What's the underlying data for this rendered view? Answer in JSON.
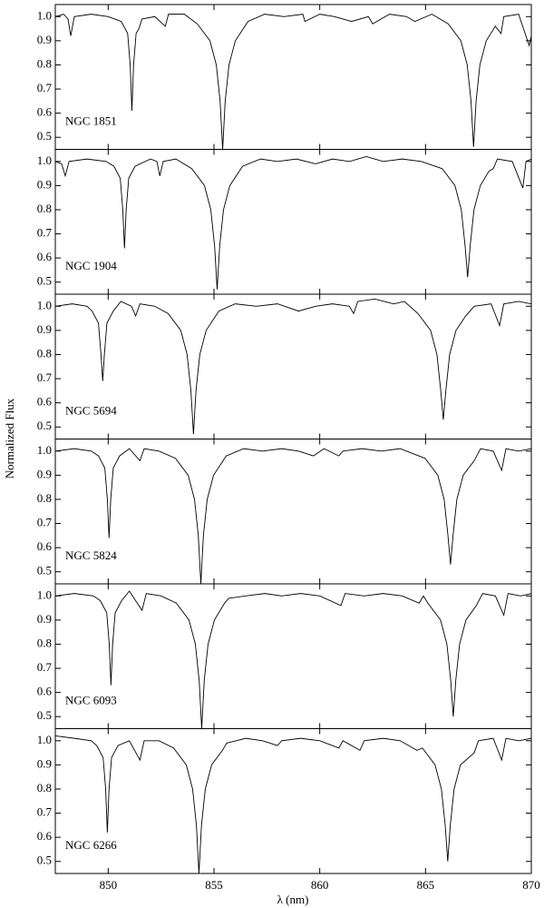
{
  "ylabel": "Normalized Flux",
  "xlabel": "λ (nm)",
  "chart_data": [
    {
      "type": "line",
      "annotation": "NGC 1851",
      "color": "#000000",
      "xlim": [
        847.5,
        870
      ],
      "xticks": [
        850,
        855,
        860,
        865,
        870
      ],
      "ylim": [
        0.45,
        1.05
      ],
      "yticks": [
        0.5,
        0.6,
        0.7,
        0.8,
        0.9,
        {
          "value": 1,
          "label": "1.0"
        }
      ],
      "x": [
        847.5,
        847.9,
        848.1,
        848.23,
        848.4,
        849.2,
        850.0,
        850.62,
        850.92,
        851.04,
        851.12,
        851.2,
        851.32,
        851.45,
        851.6,
        852.2,
        852.7,
        852.85,
        853.6,
        854.21,
        854.81,
        855.11,
        855.29,
        855.41,
        855.53,
        855.71,
        856.01,
        856.61,
        857.4,
        858.3,
        859.2,
        859.3,
        860.0,
        860.7,
        861.5,
        862.3,
        862.5,
        863.3,
        864.1,
        864.5,
        865.3,
        866.07,
        866.67,
        866.97,
        867.15,
        867.27,
        867.39,
        867.57,
        867.87,
        868.3,
        868.57,
        868.7,
        869.4,
        869.9,
        870.0
      ],
      "values": [
        1.0,
        1.01,
        0.99,
        0.92,
        1.0,
        1.01,
        1.0,
        0.98,
        0.93,
        0.8,
        0.61,
        0.8,
        0.93,
        0.95,
        0.99,
        1.0,
        0.96,
        1.01,
        1.01,
        0.97,
        0.9,
        0.8,
        0.65,
        0.45,
        0.65,
        0.8,
        0.9,
        0.98,
        1.01,
        1.0,
        1.01,
        0.98,
        1.01,
        1.0,
        0.98,
        1.0,
        0.97,
        1.01,
        1.0,
        0.98,
        1.01,
        0.97,
        0.9,
        0.8,
        0.65,
        0.46,
        0.65,
        0.8,
        0.9,
        0.96,
        0.93,
        1.0,
        1.01,
        0.88,
        0.92
      ]
    },
    {
      "type": "line",
      "annotation": "NGC 1904",
      "color": "#000000",
      "xlim": [
        847.5,
        870
      ],
      "xticks": [
        850,
        855,
        860,
        865,
        870
      ],
      "ylim": [
        0.45,
        1.05
      ],
      "yticks": [
        0.5,
        0.6,
        0.7,
        0.8,
        0.9,
        {
          "value": 1,
          "label": "1.0"
        }
      ],
      "x": [
        847.5,
        847.8,
        847.97,
        848.15,
        849.0,
        849.9,
        850.27,
        850.57,
        850.69,
        850.77,
        850.85,
        850.97,
        851.27,
        852.0,
        852.3,
        852.44,
        852.6,
        853.2,
        853.95,
        854.55,
        854.85,
        855.03,
        855.15,
        855.27,
        855.45,
        855.75,
        856.35,
        857.2,
        858.0,
        858.9,
        859.8,
        860.6,
        861.4,
        862.2,
        863.0,
        863.9,
        864.8,
        865.79,
        866.39,
        866.69,
        866.87,
        866.99,
        867.11,
        867.29,
        867.59,
        868.0,
        868.2,
        868.4,
        869.1,
        869.6,
        869.75,
        870.0
      ],
      "values": [
        1.0,
        0.99,
        0.94,
        1.0,
        1.01,
        1.0,
        0.98,
        0.93,
        0.8,
        0.64,
        0.8,
        0.93,
        0.98,
        1.01,
        1.0,
        0.94,
        1.0,
        1.01,
        0.97,
        0.9,
        0.8,
        0.65,
        0.47,
        0.65,
        0.8,
        0.9,
        0.98,
        1.01,
        1.0,
        1.01,
        0.99,
        1.01,
        1.0,
        1.02,
        1.0,
        1.01,
        1.0,
        0.97,
        0.9,
        0.8,
        0.65,
        0.52,
        0.65,
        0.8,
        0.9,
        0.96,
        0.97,
        1.01,
        1.0,
        0.89,
        1.0,
        1.01
      ]
    },
    {
      "type": "line",
      "annotation": "NGC 5694",
      "color": "#000000",
      "xlim": [
        847.5,
        870
      ],
      "xticks": [
        850,
        855,
        860,
        865,
        870
      ],
      "ylim": [
        0.45,
        1.05
      ],
      "yticks": [
        0.5,
        0.6,
        0.7,
        0.8,
        0.9,
        {
          "value": 1,
          "label": "1.0"
        }
      ],
      "x": [
        847.5,
        848.3,
        849.0,
        849.24,
        849.54,
        849.66,
        849.74,
        849.82,
        849.94,
        850.24,
        850.6,
        851.1,
        851.3,
        851.5,
        852.2,
        852.83,
        853.43,
        853.73,
        853.91,
        854.03,
        854.15,
        854.33,
        854.63,
        855.23,
        856.0,
        857.0,
        858.0,
        859.0,
        859.8,
        860.6,
        861.4,
        861.6,
        861.8,
        862.6,
        863.5,
        864.0,
        864.64,
        865.24,
        865.54,
        865.72,
        865.84,
        865.96,
        866.14,
        866.44,
        866.9,
        867.3,
        868.1,
        868.5,
        868.7,
        869.4,
        870.0
      ],
      "values": [
        1.0,
        1.01,
        1.0,
        0.98,
        0.93,
        0.8,
        0.69,
        0.8,
        0.93,
        0.98,
        1.02,
        1.0,
        0.96,
        1.01,
        1.0,
        0.97,
        0.9,
        0.8,
        0.65,
        0.47,
        0.65,
        0.8,
        0.9,
        0.98,
        1.01,
        1.0,
        1.01,
        0.98,
        1.0,
        1.01,
        1.0,
        0.97,
        1.02,
        1.03,
        1.01,
        1.02,
        0.97,
        0.9,
        0.8,
        0.65,
        0.53,
        0.65,
        0.8,
        0.9,
        0.96,
        1.0,
        1.01,
        0.92,
        1.01,
        1.02,
        1.01
      ]
    },
    {
      "type": "line",
      "annotation": "NGC 5824",
      "color": "#000000",
      "xlim": [
        847.5,
        870
      ],
      "xticks": [
        850,
        855,
        860,
        865,
        870
      ],
      "ylim": [
        0.45,
        1.05
      ],
      "yticks": [
        0.5,
        0.6,
        0.7,
        0.8,
        0.9,
        {
          "value": 1,
          "label": "1.0"
        }
      ],
      "x": [
        847.5,
        848.4,
        849.2,
        849.54,
        849.84,
        849.96,
        850.04,
        850.12,
        850.24,
        850.54,
        851.0,
        851.5,
        851.7,
        852.4,
        853.18,
        853.78,
        854.08,
        854.26,
        854.38,
        854.5,
        854.68,
        854.98,
        855.58,
        856.4,
        857.3,
        858.2,
        859.0,
        859.7,
        860.2,
        860.9,
        861.1,
        862.0,
        862.9,
        863.8,
        864.98,
        865.58,
        865.88,
        866.06,
        866.18,
        866.3,
        866.48,
        866.78,
        867.3,
        867.6,
        868.2,
        868.6,
        868.8,
        869.4,
        870.0
      ],
      "values": [
        1.0,
        1.01,
        1.0,
        0.98,
        0.93,
        0.8,
        0.64,
        0.8,
        0.93,
        0.98,
        1.01,
        0.96,
        1.01,
        1.0,
        0.97,
        0.9,
        0.8,
        0.65,
        0.45,
        0.65,
        0.8,
        0.9,
        0.98,
        1.01,
        1.0,
        1.01,
        1.0,
        0.98,
        1.01,
        0.98,
        1.0,
        1.01,
        1.0,
        1.01,
        0.97,
        0.9,
        0.8,
        0.65,
        0.53,
        0.65,
        0.8,
        0.9,
        0.96,
        1.01,
        1.0,
        0.92,
        1.01,
        1.0,
        1.01
      ]
    },
    {
      "type": "line",
      "annotation": "NGC 6093",
      "color": "#000000",
      "xlim": [
        847.5,
        870
      ],
      "xticks": [
        850,
        855,
        860,
        865,
        870
      ],
      "ylim": [
        0.45,
        1.05
      ],
      "yticks": [
        0.5,
        0.6,
        0.7,
        0.8,
        0.9,
        {
          "value": 1,
          "label": "1.0"
        }
      ],
      "x": [
        847.5,
        848.4,
        849.3,
        849.63,
        849.93,
        850.05,
        850.13,
        850.21,
        850.33,
        850.63,
        851.0,
        851.6,
        851.8,
        852.5,
        853.22,
        853.82,
        854.12,
        854.3,
        854.42,
        854.54,
        854.72,
        855.02,
        855.5,
        855.7,
        856.5,
        857.4,
        858.2,
        859.1,
        860.0,
        861.0,
        861.2,
        862.1,
        863.0,
        863.9,
        864.7,
        864.9,
        865.11,
        865.71,
        866.01,
        866.19,
        866.31,
        866.43,
        866.61,
        866.91,
        867.4,
        867.7,
        868.3,
        868.7,
        868.9,
        869.5,
        870.0
      ],
      "values": [
        1.0,
        1.01,
        1.0,
        0.98,
        0.93,
        0.8,
        0.63,
        0.8,
        0.93,
        0.98,
        1.02,
        0.94,
        1.01,
        1.0,
        0.97,
        0.9,
        0.8,
        0.65,
        0.45,
        0.65,
        0.8,
        0.9,
        0.97,
        0.99,
        1.0,
        1.01,
        1.0,
        1.01,
        1.0,
        0.96,
        1.01,
        1.0,
        1.01,
        1.0,
        0.97,
        1.0,
        0.97,
        0.9,
        0.8,
        0.65,
        0.5,
        0.65,
        0.8,
        0.9,
        0.96,
        1.01,
        1.0,
        0.92,
        1.01,
        1.0,
        1.01
      ]
    },
    {
      "type": "line",
      "annotation": "NGC 6266",
      "color": "#000000",
      "xlim": [
        847.5,
        870
      ],
      "xticks": [
        850,
        855,
        860,
        865,
        870
      ],
      "ylim": [
        0.45,
        1.05
      ],
      "yticks": [
        0.5,
        0.6,
        0.7,
        0.8,
        0.9,
        {
          "value": 1,
          "label": "1.0"
        }
      ],
      "x": [
        847.5,
        848.4,
        849.2,
        849.46,
        849.76,
        849.88,
        849.96,
        850.04,
        850.16,
        850.46,
        851.0,
        851.5,
        851.7,
        852.4,
        853.09,
        853.69,
        853.99,
        854.17,
        854.29,
        854.41,
        854.59,
        854.89,
        855.4,
        855.6,
        856.5,
        857.3,
        858.0,
        858.2,
        859.1,
        860.0,
        860.9,
        861.1,
        861.9,
        862.1,
        863.0,
        863.8,
        864.6,
        864.85,
        865.45,
        865.75,
        865.93,
        866.05,
        866.17,
        866.35,
        866.65,
        867.3,
        867.5,
        868.2,
        868.6,
        868.8,
        869.4,
        870.0
      ],
      "values": [
        1.02,
        1.01,
        1.0,
        0.98,
        0.93,
        0.8,
        0.62,
        0.8,
        0.93,
        0.98,
        1.0,
        0.92,
        1.0,
        1.0,
        0.97,
        0.9,
        0.8,
        0.65,
        0.45,
        0.65,
        0.8,
        0.9,
        0.96,
        0.99,
        1.01,
        1.0,
        0.98,
        1.0,
        1.01,
        1.0,
        0.97,
        1.0,
        0.96,
        1.0,
        1.01,
        1.0,
        0.96,
        0.97,
        0.9,
        0.8,
        0.65,
        0.5,
        0.65,
        0.8,
        0.9,
        0.95,
        1.0,
        1.01,
        0.92,
        1.01,
        1.0,
        1.01
      ]
    }
  ]
}
